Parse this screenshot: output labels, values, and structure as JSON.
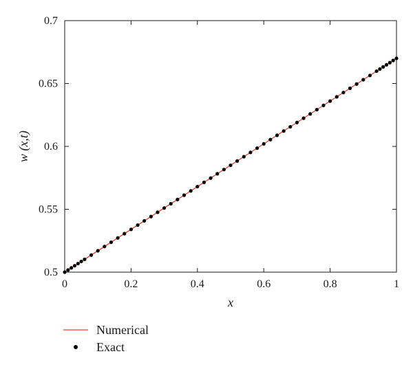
{
  "chart_data": {
    "type": "line",
    "title": "",
    "xlabel": "x",
    "ylabel": "w (x,t)",
    "xlim": [
      0,
      1
    ],
    "ylim": [
      0.5,
      0.7
    ],
    "xticks": [
      "0",
      "0.2",
      "0.4",
      "0.6",
      "0.8",
      "1"
    ],
    "yticks": [
      "0.5",
      "0.55",
      "0.6",
      "0.65",
      "0.7"
    ],
    "grid": false,
    "legend_position": "bottom-left",
    "series": [
      {
        "name": "Numerical",
        "style": "line",
        "color": "#e8402a",
        "x": [
          0,
          1
        ],
        "y": [
          0.5,
          0.67
        ]
      },
      {
        "name": "Exact",
        "style": "markers",
        "color": "#000000",
        "x": [
          0,
          0.01,
          0.02,
          0.03,
          0.04,
          0.05,
          0.06,
          0.08,
          0.1,
          0.12,
          0.14,
          0.16,
          0.18,
          0.2,
          0.22,
          0.24,
          0.26,
          0.28,
          0.3,
          0.32,
          0.34,
          0.36,
          0.38,
          0.4,
          0.42,
          0.44,
          0.46,
          0.48,
          0.5,
          0.52,
          0.54,
          0.56,
          0.58,
          0.6,
          0.62,
          0.64,
          0.66,
          0.68,
          0.7,
          0.72,
          0.74,
          0.76,
          0.78,
          0.8,
          0.82,
          0.84,
          0.86,
          0.88,
          0.9,
          0.92,
          0.94,
          0.95,
          0.96,
          0.97,
          0.98,
          0.99,
          1
        ],
        "y": [
          0.5,
          0.5017,
          0.5034,
          0.5051,
          0.5068,
          0.5085,
          0.5102,
          0.5136,
          0.517,
          0.5204,
          0.5238,
          0.5272,
          0.5306,
          0.534,
          0.5374,
          0.5408,
          0.5442,
          0.5476,
          0.551,
          0.5544,
          0.5578,
          0.5612,
          0.5646,
          0.568,
          0.5714,
          0.5748,
          0.5782,
          0.5816,
          0.585,
          0.5884,
          0.5918,
          0.5952,
          0.5986,
          0.602,
          0.6054,
          0.6088,
          0.6122,
          0.6156,
          0.619,
          0.6224,
          0.6258,
          0.6292,
          0.6326,
          0.636,
          0.6394,
          0.6428,
          0.6462,
          0.6496,
          0.653,
          0.6564,
          0.6598,
          0.6615,
          0.6632,
          0.6649,
          0.6666,
          0.6683,
          0.67
        ]
      }
    ]
  }
}
